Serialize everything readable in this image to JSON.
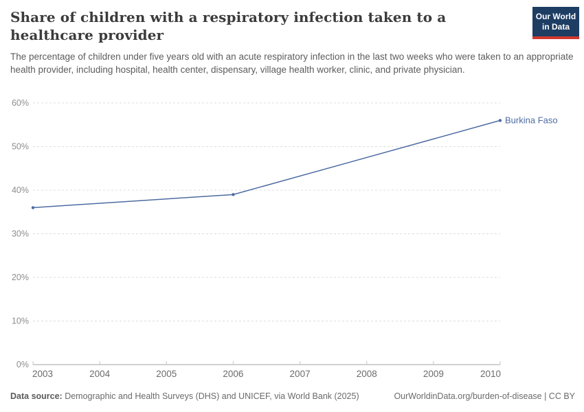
{
  "header": {
    "logo": {
      "line1": "Our World",
      "line2": "in Data",
      "bg_color": "#1d3d63",
      "accent_color": "#d3382e"
    }
  },
  "chart_data": {
    "type": "line",
    "title": "Share of children with a respiratory infection taken to a healthcare provider",
    "subtitle": "The percentage of children under five years old with an acute respiratory infection in the last two weeks who were taken to an appropriate health provider, including hospital, health center, dispensary, village health worker, clinic, and private physician.",
    "xlabel": "",
    "ylabel": "",
    "x": {
      "range": [
        2003,
        2010
      ],
      "ticks": [
        2003,
        2004,
        2005,
        2006,
        2007,
        2008,
        2009,
        2010
      ]
    },
    "y": {
      "range": [
        0,
        60
      ],
      "ticks": [
        0,
        10,
        20,
        30,
        40,
        50,
        60
      ],
      "tick_suffix": "%"
    },
    "grid": "horizontal-dashed",
    "legend": "inline-end-label",
    "colors": {
      "gridline": "#dcdcdc",
      "axis_line": "#a3a3a3",
      "tick_mark": "#c4c4c4"
    },
    "series": [
      {
        "name": "Burkina Faso",
        "color": "#4c6ba0",
        "x": [
          2003,
          2006,
          2010
        ],
        "values": [
          36,
          39,
          56
        ]
      }
    ]
  },
  "footer": {
    "datasource_label": "Data source:",
    "datasource_text": " Demographic and Health Surveys (DHS) and UNICEF, via World Bank (2025)",
    "link_text": "OurWorldinData.org/burden-of-disease | CC BY"
  }
}
